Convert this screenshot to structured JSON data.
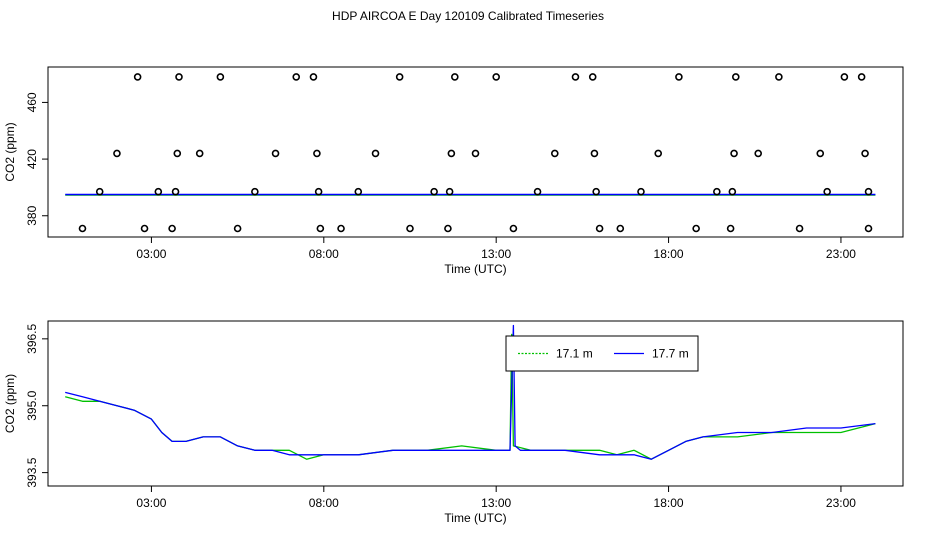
{
  "title": "HDP AIRCOA E  Day 120109  Calibrated Timeseries",
  "colors": {
    "series_a": "#00c000",
    "series_b": "#0000ff",
    "markers": "#000000"
  },
  "chart_data": [
    {
      "type": "scatter",
      "xlabel": "Time (UTC)",
      "ylabel": "CO2 (ppm)",
      "x_unit": "hours UTC",
      "xlim": [
        0,
        24.8
      ],
      "ylim": [
        365,
        485
      ],
      "x_ticks": [
        3,
        8,
        13,
        18,
        23
      ],
      "x_tick_labels": [
        "03:00",
        "08:00",
        "13:00",
        "18:00",
        "23:00"
      ],
      "y_ticks": [
        380,
        420,
        460
      ],
      "y_tick_labels": [
        "380",
        "420",
        "460"
      ],
      "grid": false,
      "legend": false,
      "series": [
        {
          "color": "#000000",
          "marker": "o",
          "points": [
            [
              1.0,
              371
            ],
            [
              1.5,
              397
            ],
            [
              2.0,
              424
            ],
            [
              2.6,
              478
            ],
            [
              2.8,
              371
            ],
            [
              3.2,
              397
            ],
            [
              3.6,
              371
            ],
            [
              3.7,
              397
            ],
            [
              3.75,
              424
            ],
            [
              3.8,
              478
            ],
            [
              4.4,
              424
            ],
            [
              5.0,
              478
            ],
            [
              5.5,
              371
            ],
            [
              6.0,
              397
            ],
            [
              6.6,
              424
            ],
            [
              7.2,
              478
            ],
            [
              7.7,
              478
            ],
            [
              7.8,
              424
            ],
            [
              7.85,
              397
            ],
            [
              7.9,
              371
            ],
            [
              8.5,
              371
            ],
            [
              9.0,
              397
            ],
            [
              9.5,
              424
            ],
            [
              10.2,
              478
            ],
            [
              10.5,
              371
            ],
            [
              11.2,
              397
            ],
            [
              11.6,
              371
            ],
            [
              11.65,
              397
            ],
            [
              11.7,
              424
            ],
            [
              11.8,
              478
            ],
            [
              12.4,
              424
            ],
            [
              13.0,
              478
            ],
            [
              13.5,
              371
            ],
            [
              14.2,
              397
            ],
            [
              14.7,
              424
            ],
            [
              15.3,
              478
            ],
            [
              15.8,
              478
            ],
            [
              15.85,
              424
            ],
            [
              15.9,
              397
            ],
            [
              16.0,
              371
            ],
            [
              16.6,
              371
            ],
            [
              17.2,
              397
            ],
            [
              17.7,
              424
            ],
            [
              18.3,
              478
            ],
            [
              18.8,
              371
            ],
            [
              19.4,
              397
            ],
            [
              19.8,
              371
            ],
            [
              19.85,
              397
            ],
            [
              19.9,
              424
            ],
            [
              19.95,
              478
            ],
            [
              20.6,
              424
            ],
            [
              21.2,
              478
            ],
            [
              21.8,
              371
            ],
            [
              22.4,
              424
            ],
            [
              22.6,
              397
            ],
            [
              23.1,
              478
            ],
            [
              23.6,
              478
            ],
            [
              23.7,
              424
            ],
            [
              23.8,
              397
            ],
            [
              23.8,
              371
            ]
          ]
        },
        {
          "color": "#00c000",
          "type": "line",
          "level": 395
        },
        {
          "color": "#0000ff",
          "type": "line",
          "level": 395
        }
      ]
    },
    {
      "type": "line",
      "xlabel": "Time (UTC)",
      "ylabel": "CO2 (ppm)",
      "x_unit": "hours UTC",
      "xlim": [
        0,
        24.8
      ],
      "ylim": [
        393.2,
        396.9
      ],
      "x_ticks": [
        3,
        8,
        13,
        18,
        23
      ],
      "x_tick_labels": [
        "03:00",
        "08:00",
        "13:00",
        "18:00",
        "23:00"
      ],
      "y_ticks": [
        393.5,
        395.0,
        396.5
      ],
      "y_tick_labels": [
        "393.5",
        "395.0",
        "396.5"
      ],
      "grid": false,
      "legend_position": "top-center",
      "series": [
        {
          "name": "17.1 m",
          "color": "#00c000",
          "x": [
            0.5,
            1.0,
            1.5,
            2.0,
            2.5,
            3.0,
            3.3,
            3.6,
            4.0,
            4.5,
            5.0,
            5.5,
            6.0,
            6.5,
            7.0,
            7.5,
            8.0,
            9.0,
            10.0,
            11.0,
            12.0,
            13.0,
            13.4,
            13.45,
            13.5,
            14.0,
            15.0,
            16.0,
            16.5,
            17.0,
            17.5,
            18.0,
            18.5,
            19.0,
            20.0,
            21.0,
            22.0,
            23.0,
            24.0
          ],
          "y": [
            395.2,
            395.1,
            395.1,
            395.0,
            394.9,
            394.7,
            394.4,
            394.2,
            394.2,
            394.3,
            394.3,
            394.1,
            394.0,
            394.0,
            394.0,
            393.8,
            393.9,
            393.9,
            394.0,
            394.0,
            394.1,
            394.0,
            394.0,
            396.6,
            394.1,
            394.0,
            394.0,
            394.0,
            393.9,
            394.0,
            393.8,
            394.0,
            394.2,
            394.3,
            394.3,
            394.4,
            394.4,
            394.4,
            394.6
          ]
        },
        {
          "name": "17.7 m",
          "color": "#0000ff",
          "x": [
            0.5,
            1.0,
            1.5,
            2.0,
            2.5,
            3.0,
            3.3,
            3.6,
            4.0,
            4.5,
            5.0,
            5.5,
            6.0,
            6.5,
            7.0,
            7.5,
            8.0,
            9.0,
            10.0,
            11.0,
            12.0,
            13.0,
            13.4,
            13.5,
            13.55,
            13.7,
            14.0,
            15.0,
            16.0,
            16.5,
            17.0,
            17.5,
            18.0,
            18.5,
            19.0,
            20.0,
            21.0,
            22.0,
            23.0,
            24.0
          ],
          "y": [
            395.3,
            395.2,
            395.1,
            395.0,
            394.9,
            394.7,
            394.4,
            394.2,
            394.2,
            394.3,
            394.3,
            394.1,
            394.0,
            394.0,
            393.9,
            393.9,
            393.9,
            393.9,
            394.0,
            394.0,
            394.0,
            394.0,
            394.0,
            396.8,
            394.1,
            394.0,
            394.0,
            394.0,
            393.9,
            393.9,
            393.9,
            393.8,
            394.0,
            394.2,
            394.3,
            394.4,
            394.4,
            394.5,
            394.5,
            394.6
          ]
        }
      ]
    }
  ]
}
